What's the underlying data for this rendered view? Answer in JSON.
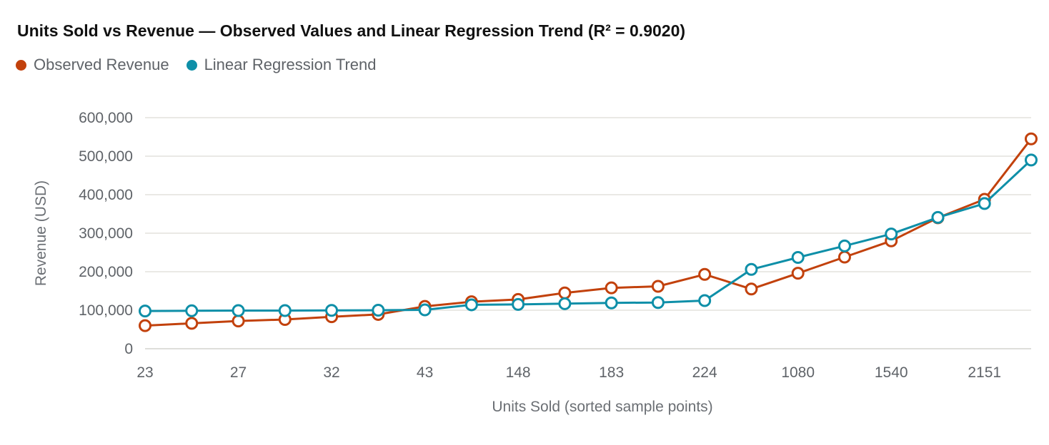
{
  "chart_data": {
    "type": "line",
    "title": "Units Sold vs Revenue — Observed Values and Linear Regression Trend (R² = 0.9020)",
    "xlabel": "Units Sold (sorted sample points)",
    "ylabel": "Revenue (USD)",
    "ylim": [
      0,
      600000
    ],
    "yticks": [
      0,
      100000,
      200000,
      300000,
      400000,
      500000,
      600000
    ],
    "ytick_labels": [
      "0",
      "100,000",
      "200,000",
      "300,000",
      "400,000",
      "500,000",
      "600,000"
    ],
    "xtick_labels": [
      "23",
      "27",
      "32",
      "43",
      "148",
      "183",
      "224",
      "1080",
      "1540",
      "2151"
    ],
    "xtick_every": 2,
    "grid": true,
    "legend": "top-left",
    "x_count": 20,
    "series": [
      {
        "name": "Observed Revenue",
        "color": "#c2410c",
        "values": [
          60000,
          66000,
          72000,
          76000,
          83000,
          89000,
          110000,
          122000,
          128000,
          145000,
          158000,
          162000,
          193000,
          155000,
          196000,
          238000,
          280000,
          340000,
          388000,
          545000
        ]
      },
      {
        "name": "Linear Regression Trend",
        "color": "#0e8fa8",
        "values": [
          98000,
          98500,
          99000,
          99000,
          99500,
          100000,
          101000,
          114000,
          115000,
          117000,
          119000,
          120000,
          125000,
          206000,
          237000,
          267000,
          298000,
          341000,
          377000,
          490000
        ]
      }
    ]
  }
}
